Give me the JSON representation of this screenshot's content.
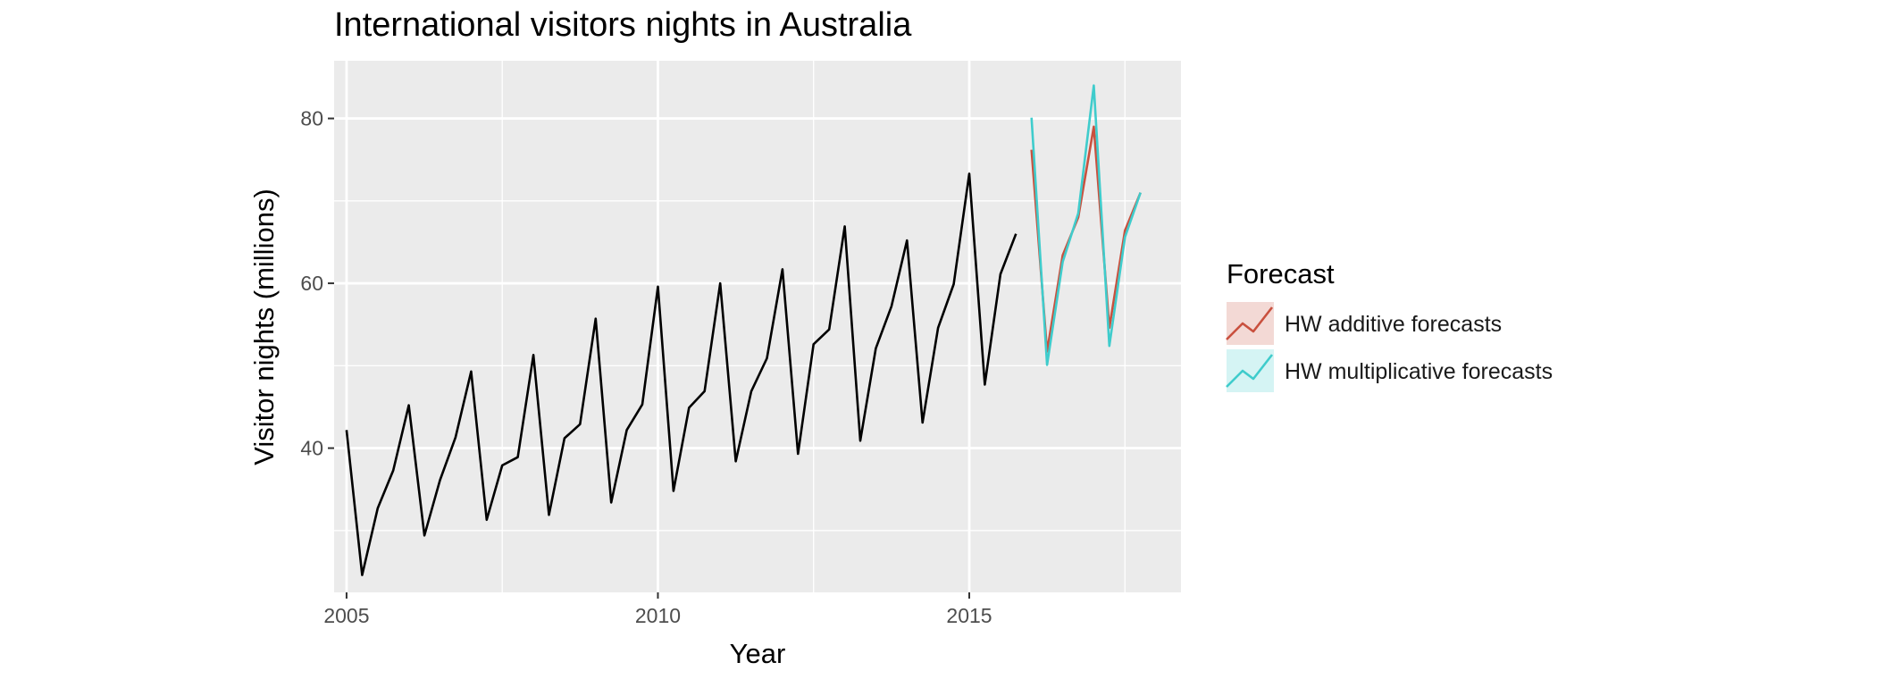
{
  "chart_data": {
    "type": "line",
    "title": "International visitors nights in Australia",
    "xlabel": "Year",
    "ylabel": "Visitor nights (millions)",
    "xlim": [
      2004.8,
      2018.4
    ],
    "ylim": [
      22.5,
      87
    ],
    "x_ticks": [
      2005,
      2010,
      2015
    ],
    "y_ticks": [
      40,
      60,
      80
    ],
    "grid": true,
    "legend_position": "right",
    "legend_title": "Forecast",
    "series": [
      {
        "role": "history",
        "color": "#000000",
        "x": [
          2005,
          2005.25,
          2005.5,
          2005.75,
          2006,
          2006.25,
          2006.5,
          2006.75,
          2007,
          2007.25,
          2007.5,
          2007.75,
          2008,
          2008.25,
          2008.5,
          2008.75,
          2009,
          2009.25,
          2009.5,
          2009.75,
          2010,
          2010.25,
          2010.5,
          2010.75,
          2011,
          2011.25,
          2011.5,
          2011.75,
          2012,
          2012.25,
          2012.5,
          2012.75,
          2013,
          2013.25,
          2013.5,
          2013.75,
          2014,
          2014.25,
          2014.5,
          2014.75,
          2015,
          2015.25,
          2015.5,
          2015.75
        ],
        "values": [
          42.2,
          24.6,
          32.7,
          37.3,
          45.2,
          29.4,
          36.1,
          41.3,
          49.3,
          31.3,
          37.9,
          38.9,
          51.3,
          31.9,
          41.2,
          42.9,
          55.7,
          33.4,
          42.2,
          45.3,
          59.6,
          34.8,
          44.9,
          46.9,
          60.0,
          38.4,
          46.9,
          50.9,
          61.7,
          39.3,
          52.6,
          54.4,
          66.9,
          40.9,
          52.1,
          57.2,
          65.2,
          43.1,
          54.6,
          59.9,
          73.3,
          47.7,
          61.1,
          66.0
        ]
      },
      {
        "name": "HW additive forecasts",
        "color": "#c9503e",
        "x": [
          2016,
          2016.25,
          2016.5,
          2016.75,
          2017,
          2017.25,
          2017.5,
          2017.75
        ],
        "values": [
          76.2,
          51.7,
          63.4,
          68.0,
          79.0,
          54.6,
          66.4,
          71.0
        ]
      },
      {
        "name": "HW multiplicative forecasts",
        "color": "#3fcccc",
        "x": [
          2016,
          2016.25,
          2016.5,
          2016.75,
          2017,
          2017.25,
          2017.5,
          2017.75
        ],
        "values": [
          80.1,
          50.1,
          62.6,
          68.5,
          84.0,
          52.4,
          65.6,
          71.0
        ]
      }
    ]
  }
}
